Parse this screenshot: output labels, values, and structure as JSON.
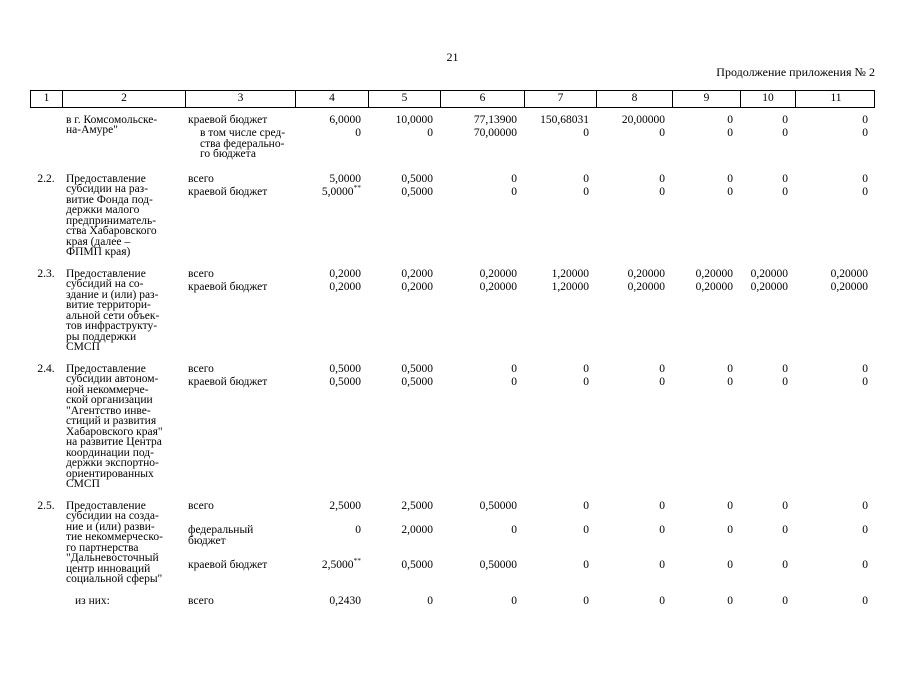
{
  "page": {
    "number": "21",
    "continuation": "Продолжение приложения № 2"
  },
  "table": {
    "columns": [
      "1",
      "2",
      "3",
      "4",
      "5",
      "6",
      "7",
      "8",
      "9",
      "10",
      "11"
    ],
    "entries": [
      {
        "num": "",
        "name": "в г. Комсомольске-\nна-Амуре\"",
        "rows": [
          {
            "budget": "краевой бюджет",
            "values": [
              "6,0000",
              "10,0000",
              "77,13900",
              "150,68031",
              "20,00000",
              "0",
              "0",
              "0"
            ]
          },
          {
            "budget": "в том числе сред-\nства федерально-\nго бюджета",
            "indent": true,
            "values": [
              "0",
              "0",
              "70,00000",
              "0",
              "0",
              "0",
              "0",
              "0"
            ]
          }
        ]
      },
      {
        "num": "2.2.",
        "name": "Предоставление\nсубсидии на раз-\nвитие Фонда под-\nдержки малого\nпредприниматель-\nства Хабаровского\nкрая (далее –\nФПМП края)",
        "rows": [
          {
            "budget": "всего",
            "values": [
              "5,0000",
              "0,5000",
              "0",
              "0",
              "0",
              "0",
              "0",
              "0"
            ]
          },
          {
            "budget": "краевой бюджет",
            "values": [
              "5,0000**",
              "0,5000",
              "0",
              "0",
              "0",
              "0",
              "0",
              "0"
            ]
          }
        ]
      },
      {
        "num": "2.3.",
        "name": "Предоставление\nсубсидий на со-\nздание и (или) раз-\nвитие территори-\nальной сети объек-\nтов инфраструкту-\nры поддержки\nСМСП",
        "rows": [
          {
            "budget": "всего",
            "values": [
              "0,2000",
              "0,2000",
              "0,20000",
              "1,20000",
              "0,20000",
              "0,20000",
              "0,20000",
              "0,20000"
            ]
          },
          {
            "budget": "краевой бюджет",
            "values": [
              "0,2000",
              "0,2000",
              "0,20000",
              "1,20000",
              "0,20000",
              "0,20000",
              "0,20000",
              "0,20000"
            ]
          }
        ]
      },
      {
        "num": "2.4.",
        "name": "Предоставление\nсубсидии автоном-\nной некоммерче-\nской организации\n\"Агентство инве-\nстиций и развития\nХабаровского края\"\nна развитие Центра\nкоординации под-\nдержки экспортно-\nориентированных\nСМСП",
        "rows": [
          {
            "budget": "всего",
            "values": [
              "0,5000",
              "0,5000",
              "0",
              "0",
              "0",
              "0",
              "0",
              "0"
            ]
          },
          {
            "budget": "краевой бюджет",
            "values": [
              "0,5000",
              "0,5000",
              "0",
              "0",
              "0",
              "0",
              "0",
              "0"
            ]
          }
        ]
      },
      {
        "num": "2.5.",
        "name": "Предоставление\nсубсидии на созда-\nние и (или) разви-\nтие некоммерческо-\nго партнерства\n\"Дальневосточный\nцентр инноваций\nсоциальной сферы\"",
        "rows": [
          {
            "budget": "всего",
            "values": [
              "2,5000",
              "2,5000",
              "0,50000",
              "0",
              "0",
              "0",
              "0",
              "0"
            ]
          },
          {
            "budget": "федеральный\nбюджет",
            "gap": true,
            "values": [
              "0",
              "2,0000",
              "0",
              "0",
              "0",
              "0",
              "0",
              "0"
            ]
          },
          {
            "budget": "краевой бюджет",
            "gap": true,
            "values": [
              "2,5000**",
              "0,5000",
              "0,50000",
              "0",
              "0",
              "0",
              "0",
              "0"
            ]
          }
        ]
      },
      {
        "num": "",
        "name": "из них:",
        "name_indent": true,
        "rows": [
          {
            "budget": "всего",
            "values": [
              "0,2430",
              "0",
              "0",
              "0",
              "0",
              "0",
              "0",
              "0"
            ]
          }
        ]
      }
    ]
  }
}
